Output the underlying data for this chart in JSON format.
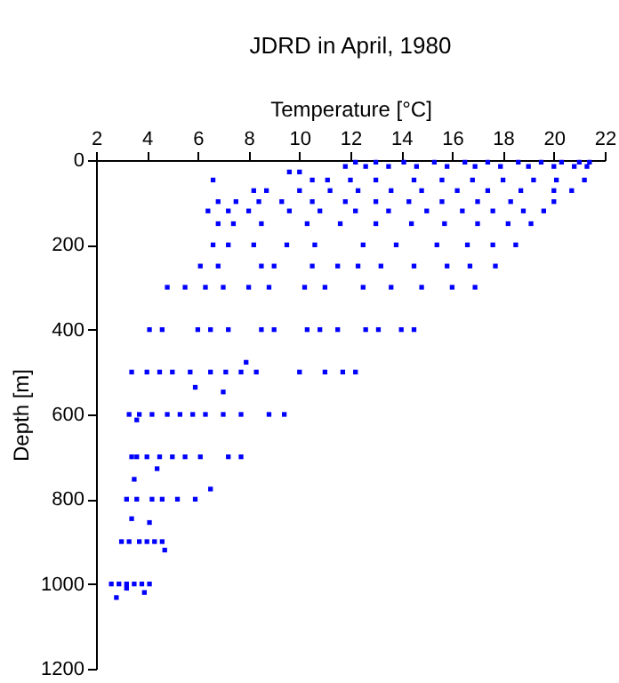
{
  "chart_data": {
    "type": "scatter",
    "title": "JDRD in April, 1980",
    "xlabel": "Temperature [°C]",
    "ylabel": "Depth [m]",
    "xlim": [
      2,
      22
    ],
    "xticks": [
      2,
      4,
      6,
      8,
      10,
      12,
      14,
      16,
      18,
      20,
      22
    ],
    "ylim": [
      1200,
      0
    ],
    "yticks": [
      0,
      200,
      400,
      600,
      800,
      1000,
      1200
    ],
    "grid": false,
    "marker": "square",
    "series": [
      {
        "color": "#0000ff",
        "x": [
          12.2,
          13.0,
          14.1,
          15.3,
          16.5,
          17.4,
          18.6,
          19.5,
          20.3,
          21.0,
          21.4
        ],
        "values": [
          5,
          5,
          5,
          5,
          5,
          5,
          5,
          5,
          5,
          5,
          5
        ]
      },
      {
        "color": "#0000ff",
        "x": [
          11.8,
          12.6,
          13.5,
          14.6,
          15.8,
          16.9,
          17.9,
          19.0,
          20.0,
          20.8,
          21.3
        ],
        "values": [
          15,
          15,
          15,
          15,
          15,
          15,
          15,
          15,
          15,
          15,
          15
        ]
      },
      {
        "color": "#0000ff",
        "x": [
          9.6,
          10.0
        ],
        "values": [
          28,
          28
        ]
      },
      {
        "color": "#0000ff",
        "x": [
          6.6,
          10.5,
          11.1,
          12.0,
          13.0,
          14.5,
          15.6,
          16.8,
          18.0,
          19.2,
          20.1,
          21.2
        ],
        "values": [
          47,
          47,
          47,
          47,
          47,
          47,
          47,
          47,
          47,
          47,
          47,
          47
        ]
      },
      {
        "color": "#0000ff",
        "x": [
          8.2,
          8.7,
          10.0,
          11.2,
          12.3,
          13.6,
          14.8,
          16.2,
          17.4,
          18.7,
          20.0,
          20.7
        ],
        "values": [
          72,
          72,
          72,
          72,
          72,
          72,
          72,
          72,
          72,
          72,
          72,
          72
        ]
      },
      {
        "color": "#0000ff",
        "x": [
          6.8,
          7.5,
          8.4,
          9.3,
          10.5,
          11.8,
          13.0,
          14.3,
          15.6,
          17.0,
          18.3,
          20.0
        ],
        "values": [
          98,
          98,
          98,
          98,
          98,
          98,
          98,
          98,
          98,
          98,
          98,
          98
        ]
      },
      {
        "color": "#0000ff",
        "x": [
          6.4,
          7.2,
          8.0,
          9.6,
          10.8,
          12.2,
          13.5,
          15.0,
          16.4,
          17.6,
          18.8,
          19.6
        ],
        "values": [
          120,
          120,
          120,
          120,
          120,
          120,
          120,
          120,
          120,
          120,
          120,
          120
        ]
      },
      {
        "color": "#0000ff",
        "x": [
          6.8,
          7.4,
          8.5,
          10.3,
          11.6,
          13.0,
          14.4,
          15.7,
          17.0,
          18.2,
          19.1
        ],
        "values": [
          150,
          150,
          150,
          150,
          150,
          150,
          150,
          150,
          150,
          150,
          150
        ]
      },
      {
        "color": "#0000ff",
        "x": [
          6.6,
          7.2,
          8.2,
          9.5,
          10.6,
          12.5,
          13.8,
          15.4,
          16.6,
          17.6,
          18.5
        ],
        "values": [
          200,
          200,
          200,
          200,
          200,
          200,
          200,
          200,
          200,
          200,
          200
        ]
      },
      {
        "color": "#0000ff",
        "x": [
          6.1,
          6.8,
          8.5,
          9.0,
          10.5,
          11.5,
          12.3,
          13.2,
          14.5,
          15.8,
          16.7,
          17.7
        ],
        "values": [
          250,
          250,
          250,
          250,
          250,
          250,
          250,
          250,
          250,
          250,
          250,
          250
        ]
      },
      {
        "color": "#0000ff",
        "x": [
          4.8,
          5.5,
          6.3,
          7.0,
          8.0,
          8.8,
          10.2,
          11.0,
          12.5,
          13.6,
          14.8,
          16.0,
          16.9
        ],
        "values": [
          300,
          300,
          300,
          300,
          300,
          300,
          300,
          300,
          300,
          300,
          300,
          300,
          300
        ]
      },
      {
        "color": "#0000ff",
        "x": [
          4.1,
          4.6,
          6.0,
          6.5,
          7.2,
          8.5,
          9.0,
          10.3,
          10.8,
          11.5,
          12.6,
          13.1,
          14.0,
          14.5
        ],
        "values": [
          400,
          400,
          400,
          400,
          400,
          400,
          400,
          400,
          400,
          400,
          400,
          400,
          400,
          400
        ]
      },
      {
        "color": "#0000ff",
        "x": [
          3.4,
          4.0,
          4.5,
          5.0,
          5.7,
          6.5,
          7.1,
          7.7,
          8.3,
          10.0,
          11.0,
          11.7,
          12.2
        ],
        "values": [
          500,
          500,
          500,
          500,
          500,
          500,
          500,
          500,
          500,
          500,
          500,
          500,
          500
        ]
      },
      {
        "color": "#0000ff",
        "x": [
          3.3,
          3.7,
          4.2,
          4.8,
          5.3,
          5.8,
          6.3,
          7.0,
          7.7,
          8.8,
          9.4
        ],
        "values": [
          600,
          600,
          600,
          600,
          600,
          600,
          600,
          600,
          600,
          600,
          600
        ]
      },
      {
        "color": "#0000ff",
        "x": [
          3.4,
          3.6,
          4.0,
          4.5,
          5.0,
          5.5,
          6.1,
          7.2,
          7.7
        ],
        "values": [
          700,
          700,
          700,
          700,
          700,
          700,
          700,
          700,
          700
        ]
      },
      {
        "color": "#0000ff",
        "x": [
          3.2,
          3.6,
          4.2,
          4.6,
          5.2,
          5.9
        ],
        "values": [
          800,
          800,
          800,
          800,
          800,
          800
        ]
      },
      {
        "color": "#0000ff",
        "x": [
          3.0,
          3.3,
          3.7,
          4.0,
          4.3,
          4.6
        ],
        "values": [
          900,
          900,
          900,
          900,
          900,
          900
        ]
      },
      {
        "color": "#0000ff",
        "x": [
          2.6,
          2.9,
          3.2,
          3.5,
          3.8,
          4.1
        ],
        "values": [
          1000,
          1000,
          1000,
          1000,
          1000,
          1000
        ]
      },
      {
        "color": "#0000ff",
        "x": [
          7.9,
          5.9,
          7.0,
          3.6,
          3.5,
          4.4,
          6.5,
          3.4,
          4.1,
          4.7,
          3.2,
          3.9,
          2.8
        ],
        "values": [
          477,
          536,
          547,
          613,
          753,
          728,
          776,
          846,
          855,
          920,
          1010,
          1020,
          1032
        ]
      }
    ]
  }
}
